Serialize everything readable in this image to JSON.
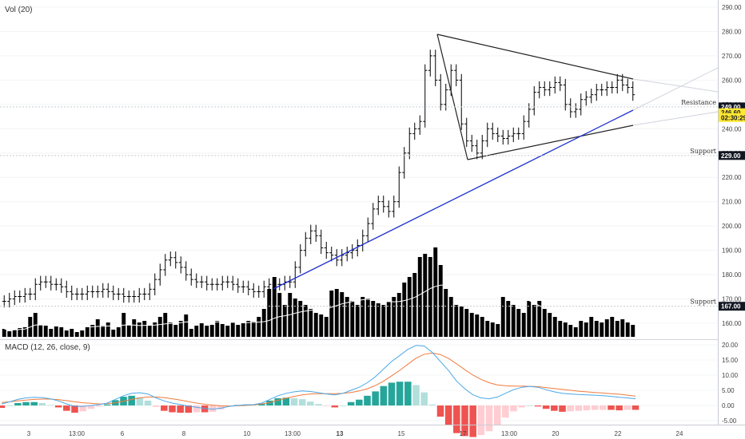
{
  "chart_data": {
    "type": "ohlc_volume_macd",
    "volume_panel": {
      "title": "Vol (20)",
      "y_axis_ticks": [
        "290.00",
        "280.00",
        "270.00",
        "260.00",
        "250.00",
        "240.00",
        "230.00",
        "220.00",
        "210.00",
        "200.00",
        "190.00",
        "180.00",
        "170.00",
        "160.00"
      ],
      "price_tags": [
        {
          "label": "249.00",
          "style": "dark",
          "value": 249
        },
        {
          "label": "246.60",
          "style": "yellow",
          "value": 246.6
        },
        {
          "label": "02:30:29",
          "style": "yellow",
          "value": 244.6
        },
        {
          "label": "229.00",
          "style": "dark",
          "value": 229
        },
        {
          "label": "167.00",
          "style": "dark",
          "value": 167
        }
      ],
      "annotations": [
        {
          "text": "Resistance",
          "value": 249
        },
        {
          "text": "Support",
          "value": 229
        },
        {
          "text": "Support",
          "value": 167
        }
      ],
      "price_series": [
        169,
        170,
        171,
        171,
        172,
        172,
        176,
        177,
        177,
        176,
        176,
        175,
        173,
        172,
        172,
        172,
        173,
        173,
        173,
        174,
        173,
        172,
        172,
        171,
        171,
        171,
        172,
        172,
        174,
        178,
        182,
        186,
        187,
        185,
        183,
        180,
        178,
        177,
        177,
        176,
        176,
        176,
        177,
        177,
        176,
        175,
        175,
        174,
        173,
        173,
        175,
        176,
        176,
        176,
        177,
        177,
        183,
        190,
        195,
        198,
        196,
        191,
        189,
        188,
        186,
        188,
        189,
        190,
        192,
        196,
        201,
        207,
        210,
        208,
        206,
        210,
        222,
        230,
        238,
        240,
        243,
        264,
        270,
        260,
        250,
        256,
        264,
        260,
        242,
        235,
        233,
        230,
        235,
        240,
        238,
        237,
        236,
        237,
        238,
        238,
        243,
        248,
        255,
        257,
        256,
        257,
        259,
        258,
        250,
        247,
        248,
        252,
        253,
        254,
        256,
        256,
        257,
        257,
        260,
        258,
        257,
        254
      ],
      "volume_series": [
        10,
        7,
        9,
        11,
        12,
        25,
        30,
        15,
        14,
        10,
        13,
        12,
        8,
        10,
        6,
        8,
        12,
        15,
        22,
        14,
        18,
        9,
        12,
        30,
        15,
        22,
        18,
        20,
        14,
        18,
        25,
        30,
        18,
        15,
        20,
        28,
        10,
        14,
        17,
        14,
        15,
        20,
        16,
        14,
        18,
        15,
        17,
        20,
        19,
        25,
        35,
        60,
        75,
        55,
        40,
        55,
        48,
        45,
        40,
        35,
        30,
        28,
        25,
        58,
        60,
        56,
        50,
        45,
        40,
        50,
        48,
        45,
        42,
        40,
        44,
        50,
        55,
        68,
        75,
        80,
        100,
        104,
        100,
        112,
        90,
        60,
        50,
        40,
        38,
        35,
        30,
        28,
        25,
        20,
        18,
        16,
        50,
        45,
        40,
        35,
        30,
        45,
        40,
        45,
        35,
        30,
        25,
        20,
        18,
        15,
        12,
        20,
        18,
        25,
        20,
        18,
        22,
        25,
        20,
        22,
        18,
        15
      ]
    },
    "macd_panel": {
      "title": "MACD (12, 26, close, 9)",
      "y_axis_ticks": [
        "20.00",
        "15.00",
        "10.00",
        "5.00",
        "0.00",
        "-5.00"
      ],
      "macd_series": [
        0.5,
        1.2,
        2.0,
        2.5,
        2.7,
        2.6,
        2.2,
        1.5,
        0.5,
        -0.3,
        -0.3,
        0.0,
        0.3,
        0.8,
        2.0,
        3.2,
        4.0,
        4.2,
        3.8,
        2.5,
        1.5,
        0.8,
        0.3,
        -0.2,
        -0.6,
        -1.0,
        -1.2,
        -0.9,
        -0.3,
        0.0,
        0.2,
        0.3,
        0.8,
        2.0,
        3.2,
        4.0,
        4.5,
        4.8,
        4.6,
        4.2,
        3.8,
        3.5,
        4.0,
        5.0,
        6.0,
        7.5,
        9.5,
        12.0,
        14.5,
        16.5,
        18.5,
        19.8,
        19.6,
        17.5,
        14.5,
        11.5,
        8.0,
        5.5,
        3.5,
        2.5,
        2.2,
        2.8,
        4.0,
        5.2,
        6.0,
        6.3,
        6.0,
        5.2,
        4.5,
        4.0,
        3.8,
        3.6,
        3.5,
        3.4,
        3.2,
        3.0,
        2.7,
        2.5,
        2.2
      ],
      "signal_series": [
        1.0,
        1.2,
        1.5,
        1.8,
        2.0,
        2.1,
        2.1,
        1.9,
        1.6,
        1.2,
        0.9,
        0.7,
        0.5,
        0.6,
        0.9,
        1.4,
        2.0,
        2.5,
        2.8,
        2.8,
        2.6,
        2.2,
        1.8,
        1.3,
        0.8,
        0.4,
        0.1,
        -0.1,
        -0.2,
        -0.1,
        0.0,
        0.2,
        0.5,
        1.0,
        1.7,
        2.4,
        3.0,
        3.5,
        3.8,
        3.9,
        3.9,
        3.9,
        4.0,
        4.3,
        4.8,
        5.5,
        6.6,
        8.0,
        9.8,
        11.6,
        13.6,
        15.6,
        16.9,
        17.3,
        16.8,
        15.5,
        13.7,
        11.8,
        10.0,
        8.6,
        7.5,
        6.8,
        6.5,
        6.4,
        6.4,
        6.3,
        6.2,
        5.9,
        5.6,
        5.3,
        5.0,
        4.7,
        4.5,
        4.3,
        4.1,
        3.9,
        3.7,
        3.4,
        3.1
      ]
    },
    "x_axis_ticks": [
      "3",
      "13:00",
      "6",
      "8",
      "10",
      "13:00",
      "13",
      "15",
      "17",
      "13:00",
      "20",
      "22",
      "24"
    ],
    "drawings": [
      {
        "type": "triangle",
        "desc": "symmetrical triangle"
      },
      {
        "type": "trendline",
        "color": "#2030d0"
      }
    ],
    "colors": {
      "volume_bar": "#000000",
      "price_bar": "#000000",
      "macd_line": "#4aa8e8",
      "signal_line": "#f07a3c",
      "hist_pos_strong": "#26a69a",
      "hist_pos_weak": "#b2dfdb",
      "hist_neg_strong": "#ef5350",
      "hist_neg_weak": "#ffcdd2",
      "trendline": "#2030d0",
      "tag_yellow": "#ffe733",
      "tag_dark": "#131722"
    }
  }
}
